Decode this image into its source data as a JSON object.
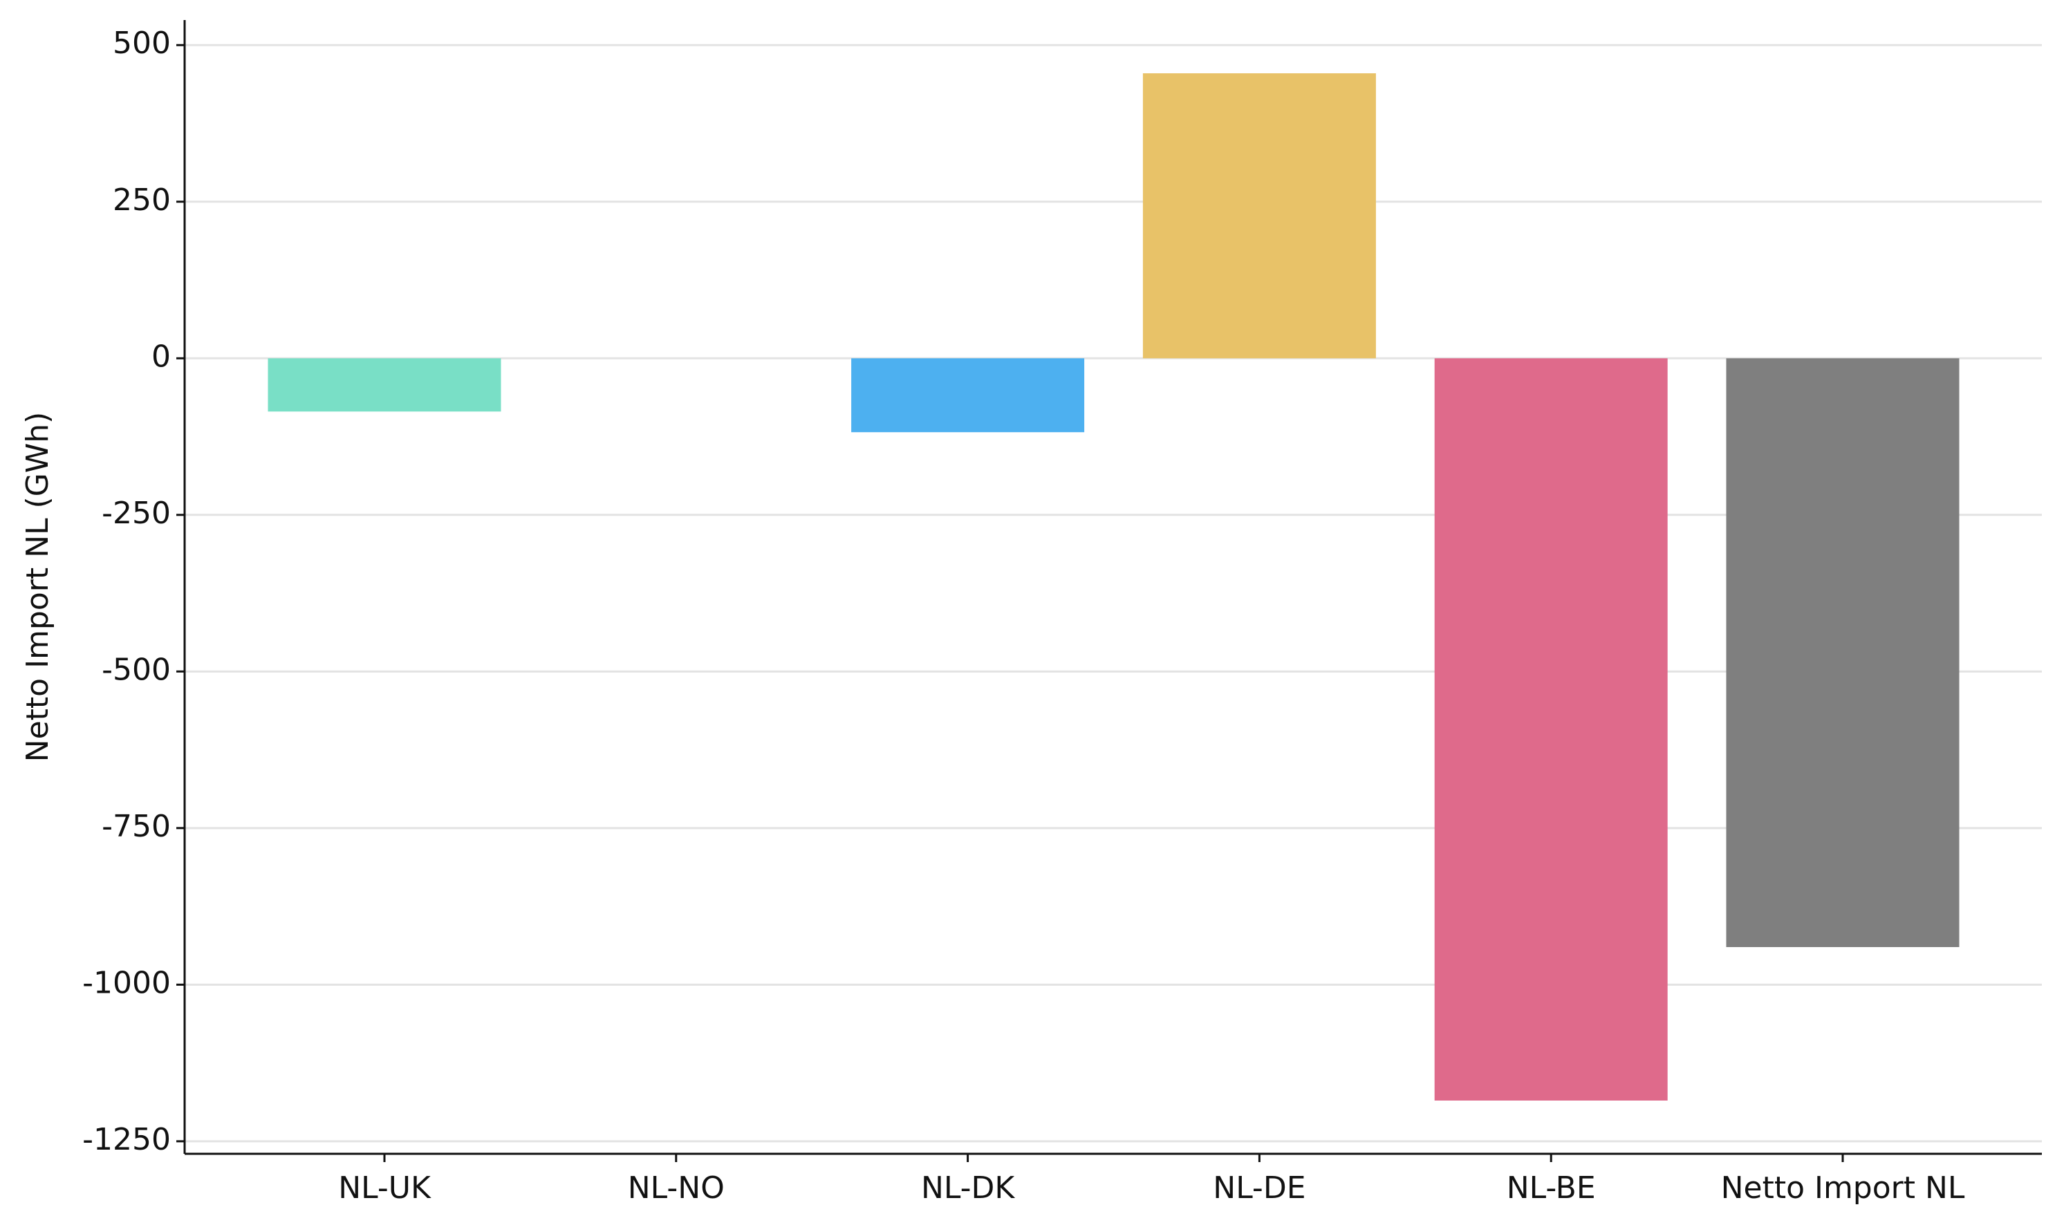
{
  "chart_data": {
    "type": "bar",
    "y_label": "Netto Import NL (GWh)",
    "categories": [
      "NL-UK",
      "NL-NO",
      "NL-DK",
      "NL-DE",
      "NL-BE",
      "Netto Import NL"
    ],
    "values": [
      -85,
      0,
      -118,
      455,
      -1185,
      -940
    ],
    "colors": [
      "#79dfc6",
      "#6fa8dc",
      "#4db0f0",
      "#e8c268",
      "#df6a8b",
      "#7f7f7f"
    ],
    "ylim": [
      -1270,
      540
    ],
    "yticks": [
      -1250,
      -1000,
      -750,
      -500,
      -250,
      0,
      250,
      500
    ],
    "grid": true
  }
}
